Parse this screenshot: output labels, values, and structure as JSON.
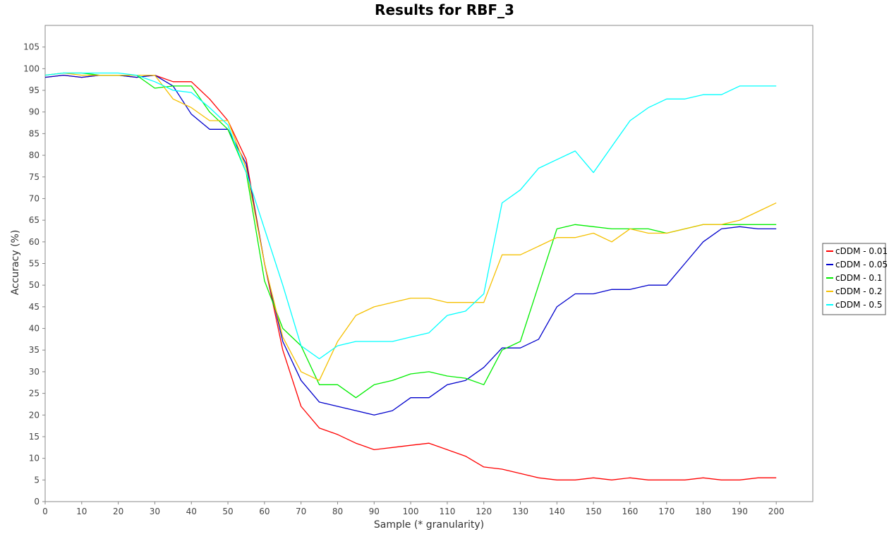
{
  "chart_data": {
    "type": "line",
    "title": "Results for RBF_3",
    "xlabel": "Sample (* granularity)",
    "ylabel": "Accuracy (%)",
    "xlim": [
      0,
      210
    ],
    "ylim": [
      0,
      110
    ],
    "xticks": [
      0,
      10,
      20,
      30,
      40,
      50,
      60,
      70,
      80,
      90,
      100,
      110,
      120,
      130,
      140,
      150,
      160,
      170,
      180,
      190,
      200
    ],
    "yticks": [
      0,
      5,
      10,
      15,
      20,
      25,
      30,
      35,
      40,
      45,
      50,
      55,
      60,
      65,
      70,
      75,
      80,
      85,
      90,
      95,
      100,
      105
    ],
    "grid": false,
    "legend_position": "right",
    "x": [
      0,
      5,
      10,
      15,
      20,
      25,
      30,
      35,
      40,
      45,
      50,
      55,
      60,
      65,
      70,
      75,
      80,
      85,
      90,
      95,
      100,
      105,
      110,
      115,
      120,
      125,
      130,
      135,
      140,
      145,
      150,
      155,
      160,
      165,
      170,
      175,
      180,
      185,
      190,
      195,
      200
    ],
    "series": [
      {
        "name": "cDDM - 0.01",
        "color": "#ff0000",
        "values": [
          98,
          98.5,
          98,
          98.5,
          98.5,
          98,
          98.5,
          97,
          97,
          93,
          88,
          79,
          55,
          35,
          22,
          17,
          15.5,
          13.5,
          12,
          12.5,
          13,
          13.5,
          12,
          10.5,
          8,
          7.5,
          6.5,
          5.5,
          5,
          5,
          5.5,
          5,
          5.5,
          5,
          5,
          5,
          5.5,
          5,
          5,
          5.5,
          5.5
        ]
      },
      {
        "name": "cDDM - 0.05",
        "color": "#0000cc",
        "values": [
          98,
          98.5,
          98,
          98.5,
          98.5,
          98,
          98.5,
          96,
          89.5,
          86,
          86,
          78,
          55,
          37,
          28,
          23,
          22,
          21,
          20,
          21,
          24,
          24,
          27,
          28,
          31,
          35.5,
          35.5,
          37.5,
          45,
          48,
          48,
          49,
          49,
          50,
          50,
          55,
          60,
          63,
          63.5,
          63,
          63
        ]
      },
      {
        "name": "cDDM - 0.1",
        "color": "#00ee00",
        "values": [
          98.5,
          99,
          99,
          98.5,
          98.5,
          98.5,
          95.5,
          96,
          96,
          90,
          86,
          76,
          51,
          40,
          36,
          27,
          27,
          24,
          27,
          28,
          29.5,
          30,
          29,
          28.5,
          27,
          35,
          37,
          50,
          63,
          64,
          63.5,
          63,
          63,
          63,
          62,
          63,
          64,
          64,
          64,
          64,
          64
        ]
      },
      {
        "name": "cDDM - 0.2",
        "color": "#f5c000",
        "values": [
          98.5,
          99,
          98.5,
          98.5,
          98.5,
          98.5,
          98.5,
          93,
          91,
          88,
          88,
          77,
          55,
          38,
          30,
          28,
          37,
          43,
          45,
          46,
          47,
          47,
          46,
          46,
          46,
          57,
          57,
          59,
          61,
          61,
          62,
          60,
          63,
          62,
          62,
          63,
          64,
          64,
          65,
          67,
          69
        ]
      },
      {
        "name": "cDDM - 0.5",
        "color": "#00ffff",
        "values": [
          98.5,
          99,
          99,
          99,
          99,
          98.5,
          97,
          95,
          94.5,
          91,
          87,
          76,
          63,
          50,
          36,
          33,
          36,
          37,
          37,
          37,
          38,
          39,
          43,
          44,
          48,
          69,
          72,
          77,
          79,
          81,
          76,
          82,
          88,
          91,
          93,
          93,
          94,
          94,
          96,
          96,
          96
        ]
      }
    ]
  }
}
